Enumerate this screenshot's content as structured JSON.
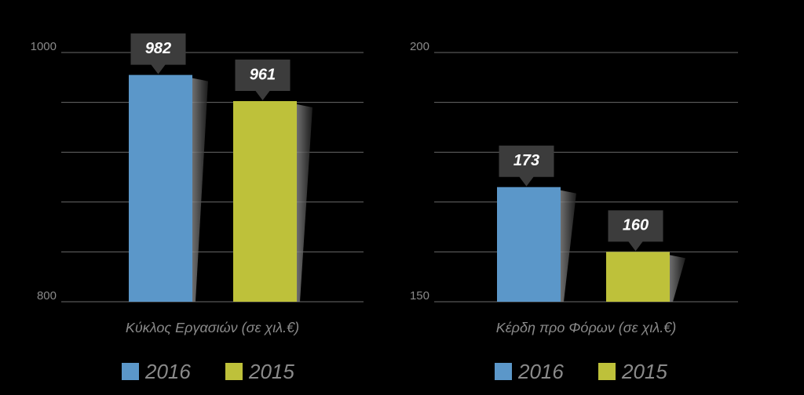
{
  "chart_data": [
    {
      "type": "bar",
      "x_label": "Κύκλος Εργασιών (σε χιλ.€)",
      "series": [
        {
          "name": "2016",
          "color": "#5b97c9",
          "values": [
            982
          ]
        },
        {
          "name": "2015",
          "color": "#bec13a",
          "values": [
            961
          ]
        }
      ],
      "ylim": [
        800,
        1000
      ],
      "yticks": [
        800,
        1000
      ],
      "minor_yticks": [
        840,
        880,
        920,
        960
      ],
      "grid": true
    },
    {
      "type": "bar",
      "x_label": "Κέρδη προ Φόρων (σε χιλ.€)",
      "series": [
        {
          "name": "2016",
          "color": "#5b97c9",
          "values": [
            173
          ]
        },
        {
          "name": "2015",
          "color": "#bec13a",
          "values": [
            160
          ]
        }
      ],
      "ylim": [
        150,
        200
      ],
      "yticks": [
        150,
        200
      ],
      "minor_yticks": [
        160,
        170,
        180,
        190
      ],
      "grid": true
    }
  ]
}
